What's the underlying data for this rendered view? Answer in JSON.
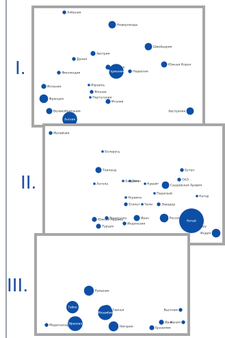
{
  "figure": {
    "bubble_color": "#0d4fa6",
    "frame_color": "#a6a6a6",
    "label_color": "#1d4fa0"
  },
  "panels": [
    {
      "label": "I.",
      "bubbles": [
        {
          "label": "Албания",
          "v": 3
        },
        {
          "label": "Нидерланды",
          "v": 6
        },
        {
          "label": "Швейцария",
          "v": 6
        },
        {
          "label": "Австрия",
          "v": 4
        },
        {
          "label": "Дания",
          "v": 3
        },
        {
          "label": "Южная Корея",
          "v": 5
        },
        {
          "label": "Финляндия",
          "v": 3
        },
        {
          "label": "Швеция",
          "v": 4
        },
        {
          "label": "Германия",
          "v": 12
        },
        {
          "label": "Норвегия",
          "v": 3
        },
        {
          "label": "Израиль",
          "v": 2
        },
        {
          "label": "Япония",
          "v": 3
        },
        {
          "label": "Франция",
          "v": 7
        },
        {
          "label": "Португалия",
          "v": 2
        },
        {
          "label": "Италия",
          "v": 4
        },
        {
          "label": "Испания",
          "v": 4
        },
        {
          "label": "Великобритания",
          "v": 5
        },
        {
          "label": "Англия",
          "v": 12
        },
        {
          "label": "Австралия",
          "v": 6
        }
      ]
    },
    {
      "label": "II.",
      "bubbles": [
        {
          "label": "Малайзия",
          "v": 3
        },
        {
          "label": "Беларусь",
          "v": 2
        },
        {
          "label": "Таиланд",
          "v": 5
        },
        {
          "label": "Ангола",
          "v": 2
        },
        {
          "label": "Бахрейн",
          "v": 2
        },
        {
          "label": "Оман",
          "v": 2
        },
        {
          "label": "Кувейт",
          "v": 2
        },
        {
          "label": "Бутан",
          "v": 3
        },
        {
          "label": "ОАЭ",
          "v": 3
        },
        {
          "label": "Саудовская Аравия",
          "v": 6
        },
        {
          "label": "Парагвай",
          "v": 2
        },
        {
          "label": "Украина",
          "v": 2
        },
        {
          "label": "Катар",
          "v": 2
        },
        {
          "label": "Египет",
          "v": 3
        },
        {
          "label": "Чили",
          "v": 2
        },
        {
          "label": "Эквадор",
          "v": 3
        },
        {
          "label": "Иран",
          "v": 5
        },
        {
          "label": "Южная Африка",
          "v": 4
        },
        {
          "label": "Венесуэла",
          "v": 3
        },
        {
          "label": "Индонезия",
          "v": 3
        },
        {
          "label": "Турция",
          "v": 4
        },
        {
          "label": "Россия",
          "v": 7
        },
        {
          "label": "Китай",
          "v": 20
        },
        {
          "label": "Перу",
          "v": 3
        },
        {
          "label": "Индия",
          "v": 7
        },
        {
          "label": "Бразилия",
          "v": 6
        }
      ]
    },
    {
      "label": "III.",
      "bubbles": [
        {
          "label": "Вьетнам",
          "v": 3
        },
        {
          "label": "Румыния",
          "v": 8
        },
        {
          "label": "Габон",
          "v": 10
        },
        {
          "label": "Гвинея",
          "v": 8
        },
        {
          "label": "Мозамбик",
          "v": 12
        },
        {
          "label": "Эфиопия",
          "v": 12
        },
        {
          "label": "Нигерия",
          "v": 8
        },
        {
          "label": "Ирак",
          "v": 4
        },
        {
          "label": "Бразилия",
          "v": 4
        },
        {
          "label": "Мадагаскар",
          "v": 3
        },
        {
          "label": "Кения",
          "v": 3
        }
      ]
    }
  ]
}
